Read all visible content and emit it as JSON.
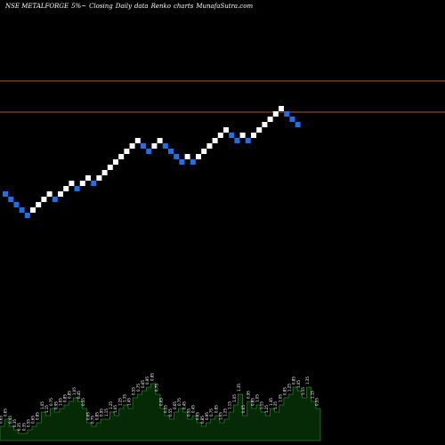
{
  "header": {
    "symbol": "NSE METALFORGE",
    "pct": "5%~",
    "label_closing": "Closing",
    "label_daily": "Daily",
    "label_data": "data",
    "label_renko": "Renko",
    "label_charts": "charts",
    "site": "MunafaSutra.com"
  },
  "colors": {
    "background": "#000000",
    "brick_up": "#ffffff",
    "brick_down": "#1e6fe8",
    "level_line": "#b5562d",
    "volume_fill": "#062a06",
    "volume_edge": "#2a7a2a",
    "volume_label": "#ffffff"
  },
  "chart_data": [
    {
      "type": "renko",
      "bricks": [
        "down",
        "down",
        "down",
        "down",
        "down",
        "up",
        "up",
        "up",
        "up",
        "down",
        "up",
        "up",
        "up",
        "down",
        "up",
        "up",
        "down",
        "up",
        "up",
        "up",
        "up",
        "up",
        "up",
        "up",
        "up",
        "down",
        "down",
        "up",
        "up",
        "down",
        "down",
        "down",
        "down",
        "up",
        "down",
        "up",
        "up",
        "up",
        "up",
        "up",
        "up",
        "down",
        "down",
        "up",
        "down",
        "up",
        "up",
        "up",
        "up",
        "up",
        "up",
        "down",
        "down",
        "down"
      ],
      "levels": [
        1,
        6
      ],
      "level_lines": true
    },
    {
      "type": "bar",
      "name": "volume",
      "values": [
        4,
        6,
        4,
        3,
        2,
        2,
        3,
        4,
        5,
        8,
        7,
        9,
        8,
        9,
        10,
        11,
        12,
        11,
        9,
        5,
        4,
        5,
        6,
        6,
        8,
        7,
        9,
        10,
        9,
        12,
        13,
        14,
        15,
        16,
        13,
        9,
        7,
        6,
        8,
        9,
        8,
        6,
        7,
        5,
        4,
        5,
        6,
        7,
        5,
        6,
        8,
        10,
        13,
        7,
        11,
        9,
        10,
        8,
        7,
        9,
        8,
        10,
        12,
        13,
        15,
        14,
        12,
        15,
        11,
        9
      ],
      "labels": [
        "0.65",
        "0.65",
        "0.45",
        "0.35",
        "0.35",
        "0.35",
        "0.55",
        "0.65",
        "0.85",
        "1.05",
        "1.15",
        "0.75",
        "0.95",
        "1.05",
        "0.85",
        "0.85",
        "1.05",
        "0.45",
        "0.55",
        "0.65",
        "0.75",
        "0.85",
        "0.95",
        "1.15",
        "1.25",
        "1.05",
        "1.25",
        "1.35",
        "1.45",
        "0.55",
        "0.75",
        "0.65",
        "0.95",
        "0.85",
        "0.75",
        "0.65",
        "0.55",
        "0.55",
        "0.65",
        "0.75",
        "0.45",
        "0.55",
        "0.45",
        "0.65",
        "0.85",
        "0.95",
        "0.75",
        "0.85",
        "1.05",
        "1.25",
        "1.15",
        "1.05",
        "1.35",
        "0.65",
        "0.95",
        "0.85",
        "1.05",
        "1.15",
        "1.25",
        "1.45",
        "1.35",
        "1.05",
        "0.85",
        "1.25",
        "0.85",
        "1.05",
        "1.15",
        "1.35",
        "1.15",
        "0.55"
      ]
    }
  ]
}
